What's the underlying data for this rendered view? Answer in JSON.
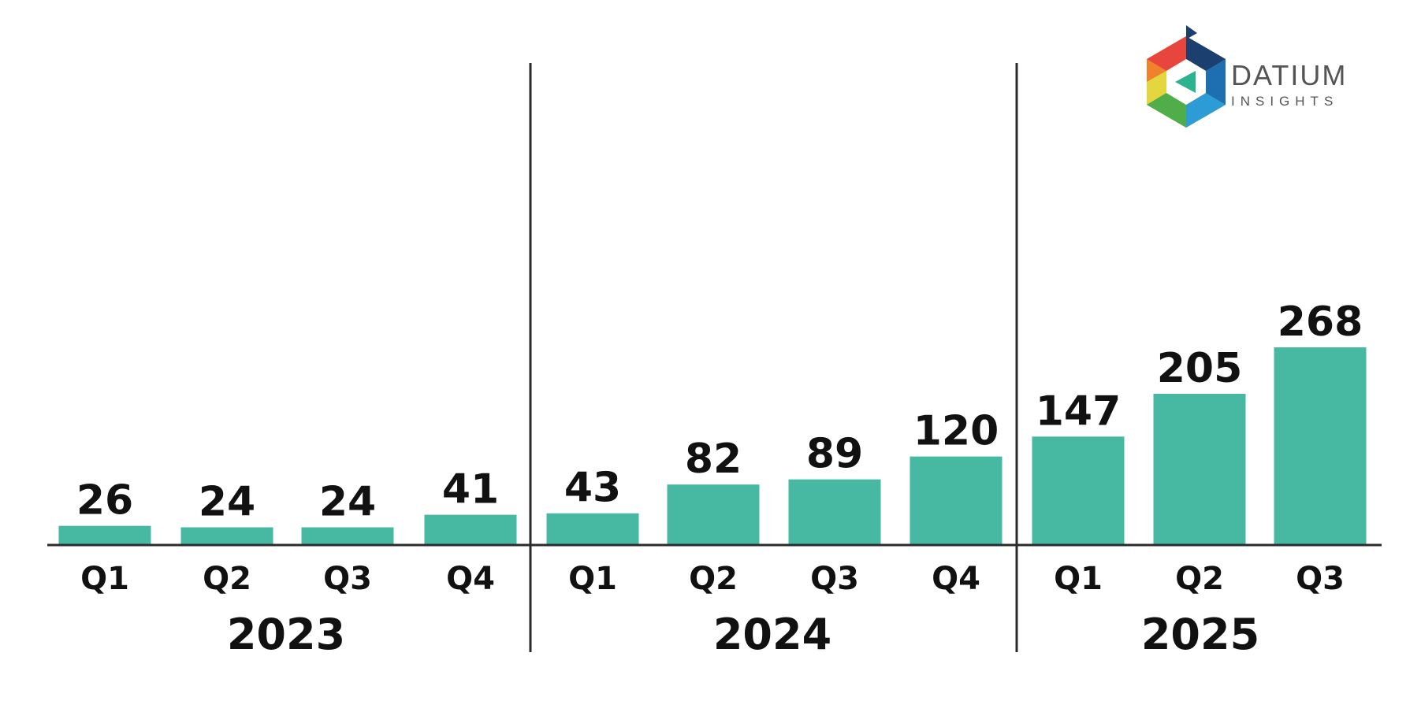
{
  "logo": {
    "icon": "datium-hexagon-icon",
    "word": "DATIUM",
    "sub": "INSIGHTS"
  },
  "colors": {
    "bar": "#47b8a1",
    "axis": "#2b2b2b",
    "text": "#111111"
  },
  "chart_data": {
    "type": "bar",
    "title": "",
    "xlabel": "",
    "ylabel": "",
    "ylim": [
      0,
      300
    ],
    "grid": false,
    "categories": [
      "Q1",
      "Q2",
      "Q3",
      "Q4",
      "Q1",
      "Q2",
      "Q3",
      "Q4",
      "Q1",
      "Q2",
      "Q3"
    ],
    "years": [
      "2023",
      "2023",
      "2023",
      "2023",
      "2024",
      "2024",
      "2024",
      "2024",
      "2025",
      "2025",
      "2025"
    ],
    "year_groups": [
      "2023",
      "2024",
      "2025"
    ],
    "values": [
      26,
      24,
      24,
      41,
      43,
      82,
      89,
      120,
      147,
      205,
      268
    ],
    "data_labels": [
      "26",
      "24",
      "24",
      "41",
      "43",
      "82",
      "89",
      "120",
      "147",
      "205",
      "268"
    ]
  }
}
